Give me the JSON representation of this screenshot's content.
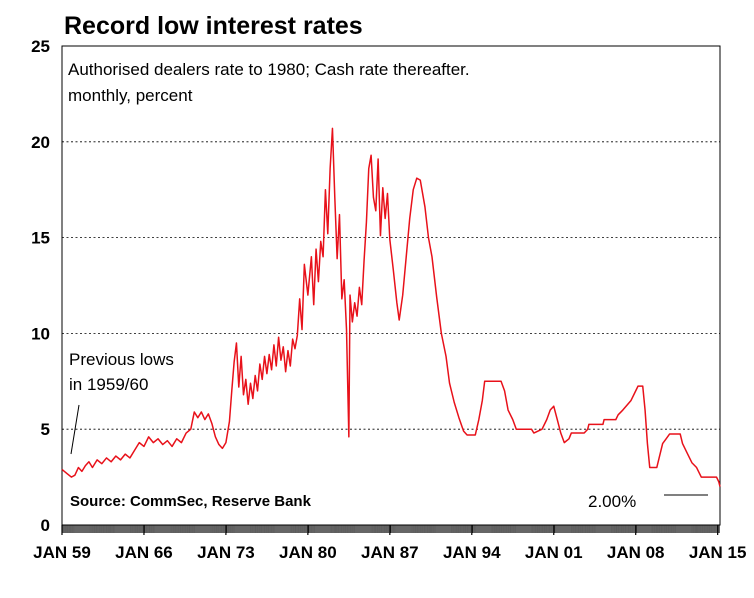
{
  "chart_data": {
    "type": "line",
    "title": "Record low interest rates",
    "subtitle_lines": [
      "Authorised dealers rate to 1980; Cash rate thereafter.",
      "monthly, percent"
    ],
    "xlabel": "",
    "ylabel": "",
    "ylim": [
      0,
      25
    ],
    "yticks": [
      0,
      5,
      10,
      15,
      20,
      25
    ],
    "xlim": [
      1959.0,
      2015.2
    ],
    "xticks": [
      {
        "label": "JAN 59",
        "value": 1959
      },
      {
        "label": "JAN 66",
        "value": 1966
      },
      {
        "label": "JAN 73",
        "value": 1973
      },
      {
        "label": "JAN 80",
        "value": 1980
      },
      {
        "label": "JAN 87",
        "value": 1987
      },
      {
        "label": "JAN 94",
        "value": 1994
      },
      {
        "label": "JAN 01",
        "value": 2001
      },
      {
        "label": "JAN 08",
        "value": 2008
      },
      {
        "label": "JAN 15",
        "value": 2015
      }
    ],
    "grid": "horizontal-dotted",
    "series": [
      {
        "color": "#e8111a",
        "points": [
          [
            1959.0,
            2.9
          ],
          [
            1959.4,
            2.7
          ],
          [
            1959.8,
            2.5
          ],
          [
            1960.1,
            2.6
          ],
          [
            1960.4,
            3.0
          ],
          [
            1960.7,
            2.8
          ],
          [
            1961.0,
            3.1
          ],
          [
            1961.3,
            3.3
          ],
          [
            1961.6,
            3.0
          ],
          [
            1962.0,
            3.4
          ],
          [
            1962.4,
            3.2
          ],
          [
            1962.8,
            3.5
          ],
          [
            1963.2,
            3.3
          ],
          [
            1963.6,
            3.6
          ],
          [
            1964.0,
            3.4
          ],
          [
            1964.4,
            3.7
          ],
          [
            1964.8,
            3.5
          ],
          [
            1965.2,
            3.9
          ],
          [
            1965.6,
            4.3
          ],
          [
            1966.0,
            4.1
          ],
          [
            1966.4,
            4.6
          ],
          [
            1966.8,
            4.3
          ],
          [
            1967.2,
            4.5
          ],
          [
            1967.6,
            4.2
          ],
          [
            1968.0,
            4.4
          ],
          [
            1968.4,
            4.1
          ],
          [
            1968.8,
            4.5
          ],
          [
            1969.2,
            4.3
          ],
          [
            1969.6,
            4.8
          ],
          [
            1970.0,
            5.0
          ],
          [
            1970.3,
            5.9
          ],
          [
            1970.6,
            5.6
          ],
          [
            1970.9,
            5.9
          ],
          [
            1971.2,
            5.5
          ],
          [
            1971.5,
            5.8
          ],
          [
            1971.8,
            5.3
          ],
          [
            1972.1,
            4.6
          ],
          [
            1972.4,
            4.2
          ],
          [
            1972.7,
            4.0
          ],
          [
            1973.0,
            4.3
          ],
          [
            1973.3,
            5.4
          ],
          [
            1973.5,
            7.0
          ],
          [
            1973.7,
            8.5
          ],
          [
            1973.9,
            9.5
          ],
          [
            1974.1,
            7.2
          ],
          [
            1974.3,
            8.8
          ],
          [
            1974.5,
            6.8
          ],
          [
            1974.7,
            7.6
          ],
          [
            1974.9,
            6.3
          ],
          [
            1975.1,
            7.4
          ],
          [
            1975.3,
            6.6
          ],
          [
            1975.5,
            7.8
          ],
          [
            1975.7,
            7.0
          ],
          [
            1975.9,
            8.4
          ],
          [
            1976.1,
            7.6
          ],
          [
            1976.3,
            8.8
          ],
          [
            1976.5,
            7.9
          ],
          [
            1976.7,
            8.9
          ],
          [
            1976.9,
            8.1
          ],
          [
            1977.1,
            9.4
          ],
          [
            1977.3,
            8.3
          ],
          [
            1977.5,
            9.8
          ],
          [
            1977.7,
            8.6
          ],
          [
            1977.9,
            9.3
          ],
          [
            1978.1,
            8.0
          ],
          [
            1978.3,
            9.1
          ],
          [
            1978.5,
            8.3
          ],
          [
            1978.7,
            9.7
          ],
          [
            1978.9,
            9.2
          ],
          [
            1979.1,
            9.9
          ],
          [
            1979.3,
            11.8
          ],
          [
            1979.5,
            10.2
          ],
          [
            1979.7,
            13.6
          ],
          [
            1980.0,
            12.0
          ],
          [
            1980.3,
            14.0
          ],
          [
            1980.5,
            11.5
          ],
          [
            1980.7,
            14.4
          ],
          [
            1980.9,
            12.7
          ],
          [
            1981.1,
            14.8
          ],
          [
            1981.3,
            14.0
          ],
          [
            1981.5,
            17.5
          ],
          [
            1981.7,
            15.2
          ],
          [
            1981.9,
            18.6
          ],
          [
            1982.1,
            20.7
          ],
          [
            1982.3,
            17.1
          ],
          [
            1982.5,
            13.9
          ],
          [
            1982.7,
            16.2
          ],
          [
            1982.9,
            11.8
          ],
          [
            1983.1,
            12.8
          ],
          [
            1983.3,
            10.2
          ],
          [
            1983.5,
            4.6
          ],
          [
            1983.6,
            12.0
          ],
          [
            1983.8,
            10.6
          ],
          [
            1984.0,
            11.6
          ],
          [
            1984.2,
            10.9
          ],
          [
            1984.4,
            12.4
          ],
          [
            1984.6,
            11.5
          ],
          [
            1984.8,
            13.8
          ],
          [
            1985.0,
            15.8
          ],
          [
            1985.2,
            18.6
          ],
          [
            1985.4,
            19.3
          ],
          [
            1985.6,
            17.1
          ],
          [
            1985.8,
            16.4
          ],
          [
            1986.0,
            19.1
          ],
          [
            1986.2,
            15.1
          ],
          [
            1986.4,
            17.6
          ],
          [
            1986.6,
            16.0
          ],
          [
            1986.8,
            17.3
          ],
          [
            1987.0,
            14.9
          ],
          [
            1987.3,
            13.3
          ],
          [
            1987.6,
            11.6
          ],
          [
            1987.8,
            10.7
          ],
          [
            1988.1,
            12.0
          ],
          [
            1988.4,
            14.0
          ],
          [
            1988.7,
            16.0
          ],
          [
            1989.0,
            17.5
          ],
          [
            1989.3,
            18.1
          ],
          [
            1989.6,
            18.0
          ],
          [
            1990.0,
            16.6
          ],
          [
            1990.3,
            15.0
          ],
          [
            1990.6,
            14.0
          ],
          [
            1991.0,
            11.9
          ],
          [
            1991.4,
            10.0
          ],
          [
            1991.8,
            8.8
          ],
          [
            1992.1,
            7.4
          ],
          [
            1992.5,
            6.4
          ],
          [
            1992.9,
            5.6
          ],
          [
            1993.3,
            4.9
          ],
          [
            1993.6,
            4.7
          ],
          [
            1994.3,
            4.7
          ],
          [
            1994.6,
            5.5
          ],
          [
            1994.9,
            6.5
          ],
          [
            1995.1,
            7.5
          ],
          [
            1996.5,
            7.5
          ],
          [
            1996.8,
            7.0
          ],
          [
            1997.1,
            6.0
          ],
          [
            1997.5,
            5.5
          ],
          [
            1997.8,
            5.0
          ],
          [
            1999.1,
            5.0
          ],
          [
            1999.3,
            4.8
          ],
          [
            2000.0,
            5.0
          ],
          [
            2000.4,
            5.5
          ],
          [
            2000.7,
            6.0
          ],
          [
            2001.0,
            6.2
          ],
          [
            2001.3,
            5.5
          ],
          [
            2001.6,
            4.8
          ],
          [
            2001.9,
            4.3
          ],
          [
            2002.3,
            4.5
          ],
          [
            2002.5,
            4.8
          ],
          [
            2003.6,
            4.8
          ],
          [
            2003.9,
            5.0
          ],
          [
            2004.0,
            5.25
          ],
          [
            2005.2,
            5.25
          ],
          [
            2005.3,
            5.5
          ],
          [
            2006.3,
            5.5
          ],
          [
            2006.5,
            5.75
          ],
          [
            2006.9,
            6.0
          ],
          [
            2007.6,
            6.5
          ],
          [
            2008.0,
            7.0
          ],
          [
            2008.2,
            7.25
          ],
          [
            2008.6,
            7.25
          ],
          [
            2008.8,
            6.0
          ],
          [
            2009.0,
            4.25
          ],
          [
            2009.2,
            3.0
          ],
          [
            2009.8,
            3.0
          ],
          [
            2010.0,
            3.5
          ],
          [
            2010.3,
            4.25
          ],
          [
            2010.6,
            4.5
          ],
          [
            2010.9,
            4.75
          ],
          [
            2011.8,
            4.75
          ],
          [
            2012.0,
            4.25
          ],
          [
            2012.4,
            3.75
          ],
          [
            2012.8,
            3.25
          ],
          [
            2013.2,
            3.0
          ],
          [
            2013.6,
            2.5
          ],
          [
            2014.9,
            2.5
          ],
          [
            2015.1,
            2.25
          ],
          [
            2015.2,
            2.0
          ]
        ]
      }
    ],
    "annotations": [
      {
        "text_lines": [
          "Previous lows",
          "in 1959/60"
        ]
      },
      {
        "text": "2.00%"
      }
    ],
    "source": "Source: CommSec, Reserve Bank"
  }
}
